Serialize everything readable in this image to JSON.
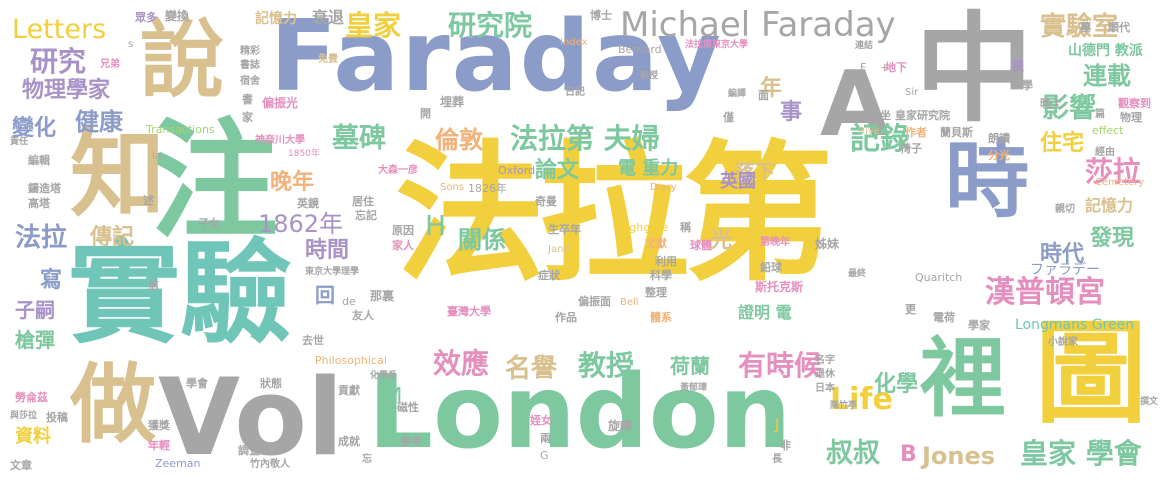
{
  "colors": {
    "yellow": "#f2cf3c",
    "blue": "#8c9cc9",
    "green": "#7ec8a0",
    "gray": "#a6a6a6",
    "tan": "#d9c08f",
    "pink": "#e58fbf",
    "orange": "#f2b27a",
    "teal": "#6fc6b8",
    "purple": "#a892c8",
    "lightgreen": "#9fd66f"
  },
  "words": [
    {
      "text": "法拉第"
    },
    {
      "text": "注"
    },
    {
      "text": "實驗"
    },
    {
      "text": "Faraday"
    },
    {
      "text": "London"
    },
    {
      "text": "Vol"
    },
    {
      "text": "中"
    },
    {
      "text": "圖"
    },
    {
      "text": "知"
    },
    {
      "text": "時"
    },
    {
      "text": "說"
    },
    {
      "text": "做"
    },
    {
      "text": "裡"
    },
    {
      "text": "A"
    },
    {
      "text": "Michael Faraday"
    },
    {
      "text": "皇家"
    },
    {
      "text": "研究院"
    },
    {
      "text": "實驗室"
    },
    {
      "text": "漢普頓宮"
    },
    {
      "text": "莎拉"
    },
    {
      "text": "墓碑"
    },
    {
      "text": "法拉第 夫婦"
    },
    {
      "text": "記錄"
    },
    {
      "text": "影響"
    },
    {
      "text": "倫敦"
    },
    {
      "text": "效應"
    },
    {
      "text": "名譽"
    },
    {
      "text": "教授"
    },
    {
      "text": "有時候"
    },
    {
      "text": "Life"
    },
    {
      "text": "叔叔"
    },
    {
      "text": "B"
    },
    {
      "text": "Jones"
    },
    {
      "text": "皇家 學會"
    },
    {
      "text": "研究"
    },
    {
      "text": "物理學家"
    },
    {
      "text": "Letters"
    },
    {
      "text": "變化"
    },
    {
      "text": "健康"
    },
    {
      "text": "法拉"
    },
    {
      "text": "傳記"
    },
    {
      "text": "1862年"
    },
    {
      "text": "晚年"
    },
    {
      "text": "時間"
    },
    {
      "text": "H"
    },
    {
      "text": "關係"
    },
    {
      "text": "光"
    },
    {
      "text": "論文"
    },
    {
      "text": "電 重力"
    },
    {
      "text": "落下"
    },
    {
      "text": "英國"
    },
    {
      "text": "住宅"
    },
    {
      "text": "時代"
    },
    {
      "text": "發現"
    },
    {
      "text": "連載"
    },
    {
      "text": "年"
    },
    {
      "text": "事"
    },
    {
      "text": "化學"
    },
    {
      "text": "荷蘭"
    },
    {
      "text": "M"
    },
    {
      "text": "回"
    },
    {
      "text": "子嗣"
    },
    {
      "text": "槍彈"
    },
    {
      "text": "資料"
    },
    {
      "text": "寫"
    },
    {
      "text": "證明 電"
    },
    {
      "text": "Longmans Green"
    },
    {
      "text": "記憶力"
    },
    {
      "text": "衰退"
    },
    {
      "text": "山德門 教派"
    },
    {
      "text": "ファラデー"
    },
    {
      "text": "Highgate"
    },
    {
      "text": "Oxford"
    },
    {
      "text": "Transactions"
    },
    {
      "text": "Philosophical"
    },
    {
      "text": "Quaritch"
    },
    {
      "text": "Cemetery"
    },
    {
      "text": "Bernard"
    },
    {
      "text": "Index"
    },
    {
      "text": "Diary"
    },
    {
      "text": "Sons"
    },
    {
      "text": "Rive"
    },
    {
      "text": "effect"
    },
    {
      "text": "Zeeman"
    },
    {
      "text": "Jane"
    },
    {
      "text": "Bell"
    },
    {
      "text": "Sir"
    },
    {
      "text": "1826年"
    },
    {
      "text": "1850年"
    },
    {
      "text": "博士"
    },
    {
      "text": "墓"
    },
    {
      "text": "順代"
    },
    {
      "text": "眾多"
    },
    {
      "text": "變換"
    },
    {
      "text": "精彩"
    },
    {
      "text": "書誌"
    },
    {
      "text": "宿舍"
    },
    {
      "text": "兄弟"
    },
    {
      "text": "免費"
    },
    {
      "text": "日記"
    },
    {
      "text": "埋葬"
    },
    {
      "text": "皇家研究院"
    },
    {
      "text": "觀察到"
    },
    {
      "text": "物理"
    },
    {
      "text": "經由"
    },
    {
      "text": "親切"
    },
    {
      "text": "記憶力"
    },
    {
      "text": "蘭貝斯"
    },
    {
      "text": "作者"
    },
    {
      "text": "朗讀"
    },
    {
      "text": "椅子"
    },
    {
      "text": "分光"
    },
    {
      "text": "鉛球"
    },
    {
      "text": "斯托克斯"
    },
    {
      "text": "球體"
    },
    {
      "text": "姊妹"
    },
    {
      "text": "第晚年"
    },
    {
      "text": "生卒年"
    },
    {
      "text": "文獻"
    },
    {
      "text": "利用"
    },
    {
      "text": "科學"
    },
    {
      "text": "症狀"
    },
    {
      "text": "偏振面"
    },
    {
      "text": "整理"
    },
    {
      "text": "作品"
    },
    {
      "text": "體系"
    },
    {
      "text": "臺灣大學"
    },
    {
      "text": "友人"
    },
    {
      "text": "那裏"
    },
    {
      "text": "東京大學理學"
    },
    {
      "text": "家人"
    },
    {
      "text": "原因"
    },
    {
      "text": "居住"
    },
    {
      "text": "忘記"
    },
    {
      "text": "英鏡"
    },
    {
      "text": "大森一彦"
    },
    {
      "text": "奇曼"
    },
    {
      "text": "貢獻"
    },
    {
      "text": "成就"
    },
    {
      "text": "參考"
    },
    {
      "text": "姪女"
    },
    {
      "text": "旋轉"
    },
    {
      "text": "磁性"
    },
    {
      "text": "化學系"
    },
    {
      "text": "狀態"
    },
    {
      "text": "學會"
    },
    {
      "text": "獲獎"
    },
    {
      "text": "年輕"
    },
    {
      "text": "投稿"
    },
    {
      "text": "勞侖茲"
    },
    {
      "text": "鑄造塔"
    },
    {
      "text": "高塔"
    },
    {
      "text": "編輯"
    },
    {
      "text": "責任"
    },
    {
      "text": "述"
    },
    {
      "text": "信"
    },
    {
      "text": "子女"
    },
    {
      "text": "文章"
    },
    {
      "text": "與莎拉"
    },
    {
      "text": "去世"
    },
    {
      "text": "竹內敬人"
    },
    {
      "text": "調查"
    },
    {
      "text": "退休"
    },
    {
      "text": "日本"
    },
    {
      "text": "名字"
    },
    {
      "text": "更"
    },
    {
      "text": "電荷"
    },
    {
      "text": "學家"
    },
    {
      "text": "小說家"
    },
    {
      "text": "最終"
    },
    {
      "text": "黃郁璋"
    },
    {
      "text": "陳竹亭"
    },
    {
      "text": "撰文"
    },
    {
      "text": "法拉第東京大學"
    },
    {
      "text": "教授"
    },
    {
      "text": "編譯"
    },
    {
      "text": "神奈川大學"
    },
    {
      "text": "偏振光"
    },
    {
      "text": "晚上"
    },
    {
      "text": "連結"
    },
    {
      "text": "坐"
    },
    {
      "text": "提"
    },
    {
      "text": "學"
    },
    {
      "text": "地下"
    },
    {
      "text": "F"
    },
    {
      "text": "J"
    },
    {
      "text": "G"
    },
    {
      "text": "la"
    },
    {
      "text": "de"
    },
    {
      "text": "s"
    },
    {
      "text": "長"
    },
    {
      "text": "忘"
    },
    {
      "text": "兩"
    },
    {
      "text": "非"
    },
    {
      "text": "稱"
    },
    {
      "text": "面"
    },
    {
      "text": "僅"
    },
    {
      "text": "開"
    },
    {
      "text": "家"
    },
    {
      "text": "書"
    },
    {
      "text": "篇"
    },
    {
      "text": "+"
    }
  ]
}
